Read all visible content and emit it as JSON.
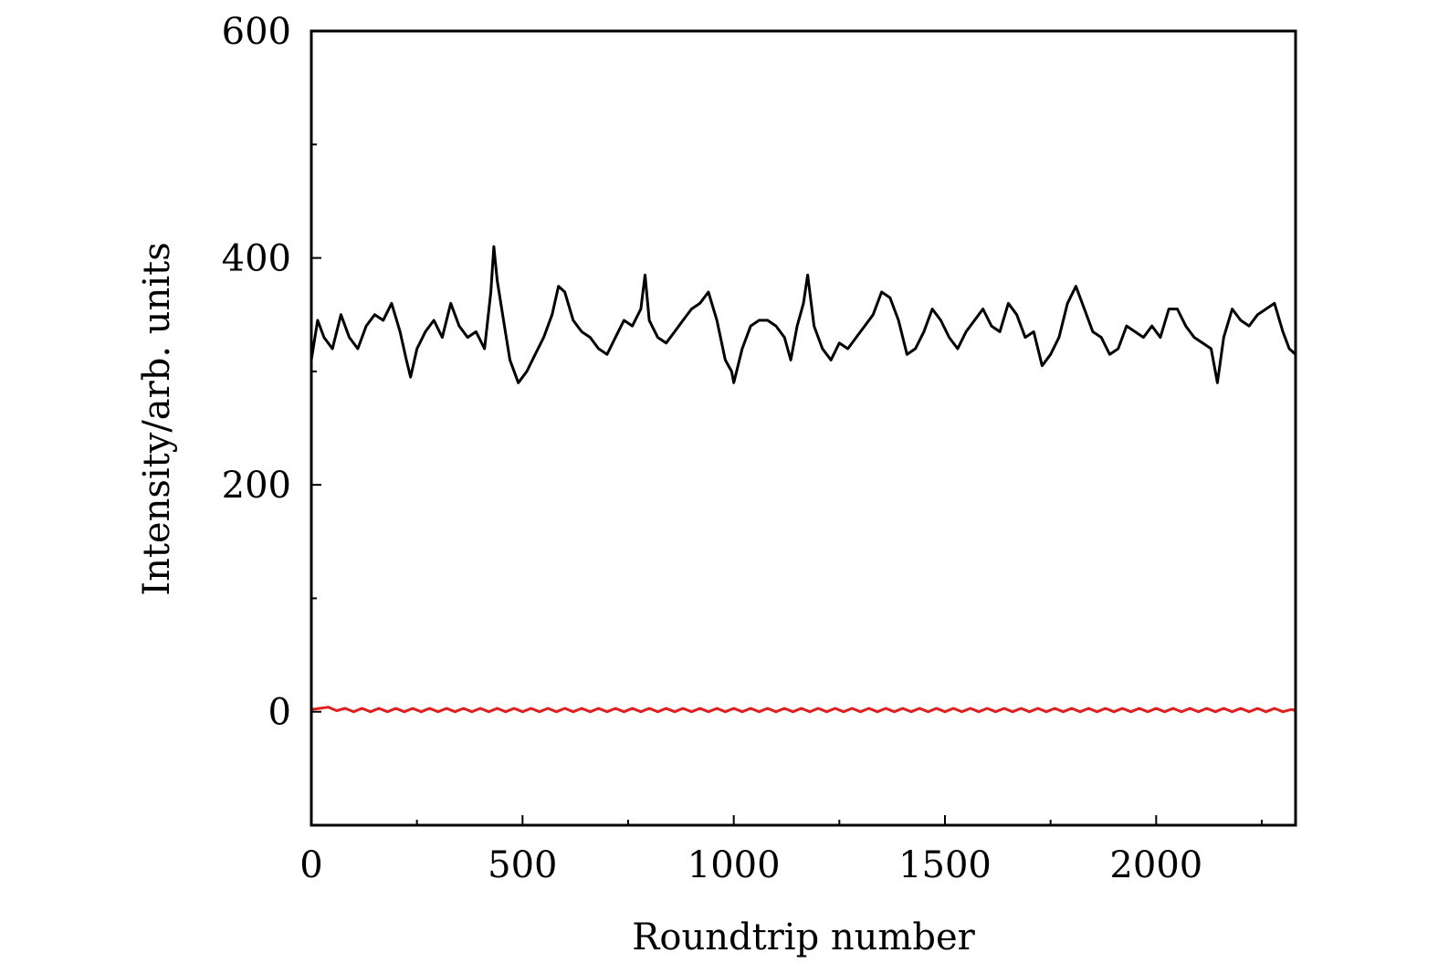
{
  "chart_data": {
    "type": "line",
    "title": "",
    "xlabel": "Roundtrip number",
    "ylabel": "Intensity/arb. units",
    "xlim": [
      0,
      2330
    ],
    "ylim": [
      -100,
      600
    ],
    "x_ticks": [
      0,
      500,
      1000,
      1500,
      2000
    ],
    "x_minor_ticks": [
      250,
      750,
      1250,
      1750,
      2250
    ],
    "y_ticks": [
      0,
      200,
      400,
      600
    ],
    "y_minor_ticks": [
      100,
      300,
      500
    ],
    "grid": false,
    "series": [
      {
        "color": "#000000",
        "x": [
          0,
          15,
          30,
          50,
          70,
          90,
          110,
          130,
          150,
          170,
          190,
          210,
          225,
          235,
          250,
          270,
          290,
          310,
          330,
          350,
          370,
          390,
          410,
          425,
          432,
          440,
          455,
          470,
          490,
          510,
          530,
          550,
          570,
          585,
          600,
          620,
          640,
          660,
          680,
          700,
          720,
          740,
          760,
          780,
          790,
          800,
          820,
          840,
          860,
          880,
          900,
          920,
          940,
          960,
          980,
          995,
          1000,
          1020,
          1040,
          1060,
          1080,
          1100,
          1120,
          1135,
          1150,
          1165,
          1175,
          1190,
          1210,
          1230,
          1250,
          1270,
          1290,
          1310,
          1330,
          1350,
          1370,
          1390,
          1410,
          1430,
          1450,
          1470,
          1490,
          1510,
          1530,
          1550,
          1570,
          1590,
          1610,
          1630,
          1650,
          1670,
          1690,
          1710,
          1730,
          1750,
          1770,
          1790,
          1810,
          1830,
          1850,
          1870,
          1890,
          1910,
          1930,
          1950,
          1970,
          1990,
          2010,
          2030,
          2050,
          2070,
          2090,
          2110,
          2130,
          2145,
          2160,
          2180,
          2200,
          2220,
          2240,
          2260,
          2280,
          2300,
          2315,
          2330
        ],
        "y": [
          310,
          345,
          330,
          320,
          350,
          330,
          320,
          340,
          350,
          345,
          360,
          335,
          310,
          295,
          320,
          335,
          345,
          330,
          360,
          340,
          330,
          335,
          320,
          370,
          410,
          380,
          345,
          310,
          290,
          300,
          315,
          330,
          350,
          375,
          370,
          345,
          335,
          330,
          320,
          315,
          330,
          345,
          340,
          355,
          385,
          345,
          330,
          325,
          335,
          345,
          355,
          360,
          370,
          345,
          310,
          300,
          290,
          320,
          340,
          345,
          345,
          340,
          330,
          310,
          340,
          360,
          385,
          340,
          320,
          310,
          325,
          320,
          330,
          340,
          350,
          370,
          365,
          345,
          315,
          320,
          335,
          355,
          345,
          330,
          320,
          335,
          345,
          355,
          340,
          335,
          360,
          350,
          330,
          335,
          305,
          315,
          330,
          360,
          375,
          355,
          335,
          330,
          315,
          320,
          340,
          335,
          330,
          340,
          330,
          355,
          355,
          340,
          330,
          325,
          320,
          290,
          330,
          355,
          345,
          340,
          350,
          355,
          360,
          335,
          320,
          315
        ]
      },
      {
        "color": "#e02020",
        "x": [
          0,
          20,
          40,
          60,
          80,
          100,
          120,
          140,
          160,
          180,
          200,
          220,
          240,
          260,
          280,
          300,
          320,
          340,
          360,
          380,
          400,
          420,
          440,
          460,
          480,
          500,
          520,
          540,
          560,
          580,
          600,
          620,
          640,
          660,
          680,
          700,
          720,
          740,
          760,
          780,
          800,
          820,
          840,
          860,
          880,
          900,
          920,
          940,
          960,
          980,
          1000,
          1020,
          1040,
          1060,
          1080,
          1100,
          1120,
          1140,
          1160,
          1180,
          1200,
          1220,
          1240,
          1260,
          1280,
          1300,
          1320,
          1340,
          1360,
          1380,
          1400,
          1420,
          1440,
          1460,
          1480,
          1500,
          1520,
          1540,
          1560,
          1580,
          1600,
          1620,
          1640,
          1660,
          1680,
          1700,
          1720,
          1740,
          1760,
          1780,
          1800,
          1820,
          1840,
          1860,
          1880,
          1900,
          1920,
          1940,
          1960,
          1980,
          2000,
          2020,
          2040,
          2060,
          2080,
          2100,
          2120,
          2140,
          2160,
          2180,
          2200,
          2220,
          2240,
          2260,
          2280,
          2300,
          2320,
          2330
        ],
        "y": [
          2,
          3,
          4,
          1,
          3,
          0,
          3,
          0,
          3,
          0,
          3,
          0,
          3,
          0,
          3,
          0,
          3,
          0,
          3,
          0,
          3,
          0,
          3,
          0,
          3,
          0,
          3,
          0,
          3,
          0,
          3,
          0,
          3,
          0,
          3,
          0,
          3,
          0,
          3,
          0,
          3,
          0,
          3,
          0,
          3,
          0,
          3,
          0,
          3,
          0,
          3,
          0,
          3,
          0,
          3,
          0,
          3,
          0,
          3,
          0,
          3,
          0,
          3,
          0,
          3,
          0,
          3,
          0,
          3,
          0,
          3,
          0,
          3,
          0,
          3,
          0,
          3,
          0,
          3,
          0,
          3,
          0,
          3,
          0,
          3,
          0,
          3,
          0,
          3,
          0,
          3,
          0,
          3,
          0,
          3,
          0,
          3,
          0,
          3,
          0,
          3,
          0,
          3,
          0,
          3,
          0,
          3,
          0,
          3,
          0,
          3,
          0,
          3,
          0,
          3,
          0,
          2,
          1
        ]
      }
    ]
  }
}
